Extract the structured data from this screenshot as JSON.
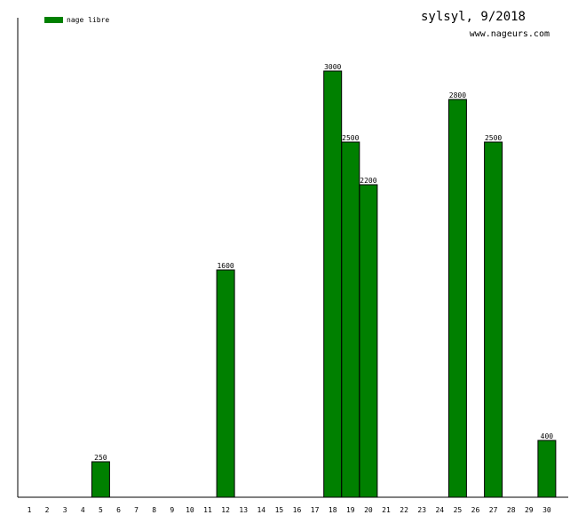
{
  "header": {
    "title": "sylsyl, 9/2018",
    "site": "www.nageurs.com"
  },
  "chart_data": {
    "type": "bar",
    "title": "sylsyl, 9/2018",
    "xlabel": "",
    "ylabel": "",
    "ylim": [
      0,
      3000
    ],
    "grid": false,
    "legend_position": "top-left",
    "categories": [
      "1",
      "2",
      "3",
      "4",
      "5",
      "6",
      "7",
      "8",
      "9",
      "10",
      "11",
      "12",
      "13",
      "14",
      "15",
      "16",
      "17",
      "18",
      "19",
      "20",
      "21",
      "22",
      "23",
      "24",
      "25",
      "26",
      "27",
      "28",
      "29",
      "30"
    ],
    "series": [
      {
        "name": "nage libre",
        "color": "#008000",
        "values": [
          0,
          0,
          0,
          0,
          250,
          0,
          0,
          0,
          0,
          0,
          0,
          1600,
          0,
          0,
          0,
          0,
          0,
          3000,
          2500,
          2200,
          0,
          0,
          0,
          0,
          2800,
          0,
          2500,
          0,
          0,
          400
        ]
      }
    ]
  }
}
